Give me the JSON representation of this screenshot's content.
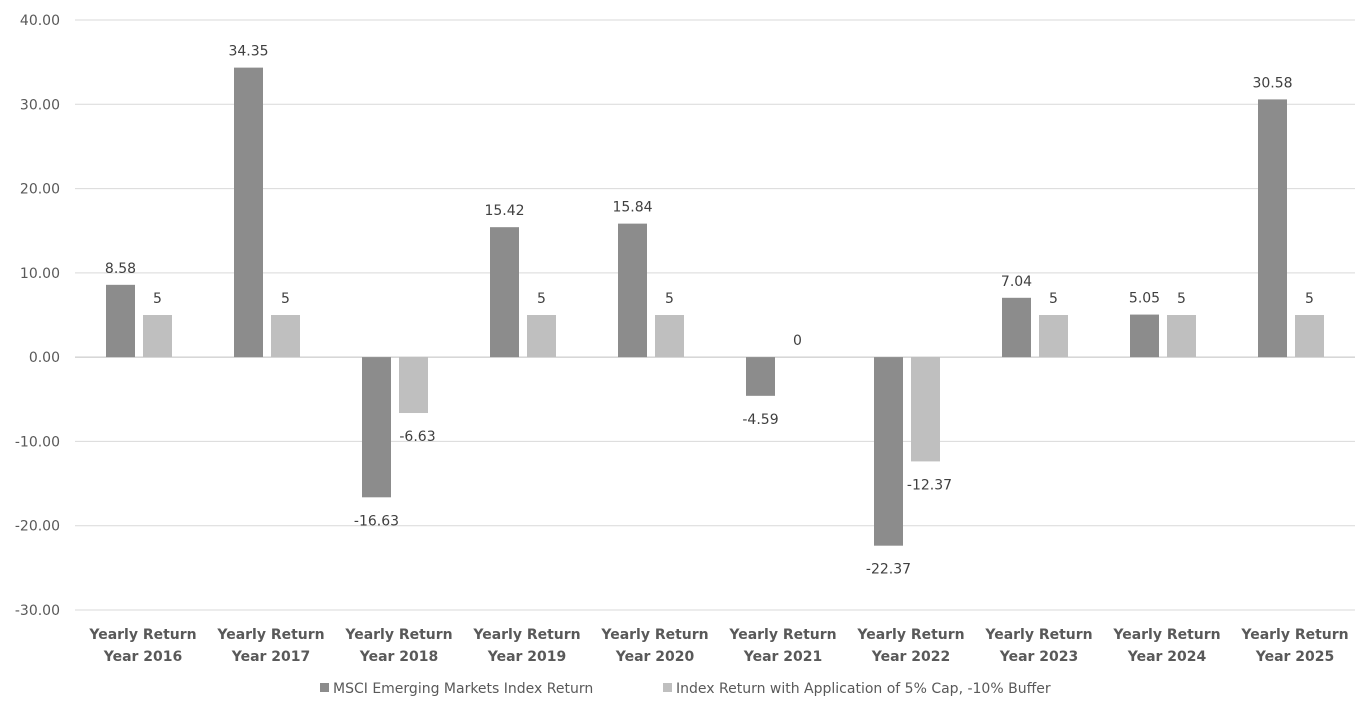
{
  "chart_data": {
    "type": "bar",
    "title": "",
    "xlabel": "",
    "ylabel": "",
    "ylim": [
      -30,
      40
    ],
    "ytick_step": 10,
    "ytick_labels": [
      "-30.00",
      "-20.00",
      "-10.00",
      "0.00",
      "10.00",
      "20.00",
      "30.00",
      "40.00"
    ],
    "grid": true,
    "legend_position": "bottom",
    "categories": [
      [
        "Yearly Return",
        "Year 2016"
      ],
      [
        "Yearly Return",
        "Year 2017"
      ],
      [
        "Yearly Return",
        "Year 2018"
      ],
      [
        "Yearly Return",
        "Year 2019"
      ],
      [
        "Yearly Return",
        "Year 2020"
      ],
      [
        "Yearly Return",
        "Year 2021"
      ],
      [
        "Yearly Return",
        "Year 2022"
      ],
      [
        "Yearly Return",
        "Year 2023"
      ],
      [
        "Yearly Return",
        "Year 2024"
      ],
      [
        "Yearly Return",
        "Year 2025"
      ]
    ],
    "series": [
      {
        "name": "MSCI Emerging Markets Index Return",
        "color": "#8c8c8c",
        "values": [
          8.58,
          34.35,
          -16.63,
          15.42,
          15.84,
          -4.59,
          -22.37,
          7.04,
          5.05,
          30.58
        ],
        "labels": [
          "8.58",
          "34.35",
          "-16.63",
          "15.42",
          "15.84",
          "-4.59",
          "-22.37",
          "7.04",
          "5.05",
          "30.58"
        ]
      },
      {
        "name": "Index Return with Application of 5% Cap, -10% Buffer",
        "color": "#bfbfbf",
        "values": [
          5,
          5,
          -6.63,
          5,
          5,
          0,
          -12.37,
          5,
          5,
          5
        ],
        "labels": [
          "5",
          "5",
          "-6.63",
          "5",
          "5",
          "0",
          "-12.37",
          "5",
          "5",
          "5"
        ]
      }
    ]
  }
}
